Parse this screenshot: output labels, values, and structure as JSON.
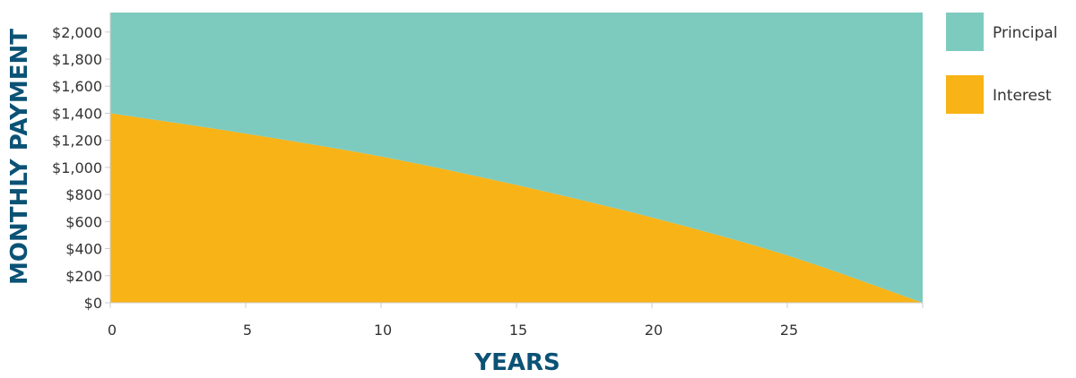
{
  "chart_data": {
    "type": "area",
    "stacked": true,
    "title": "",
    "xlabel": "YEARS",
    "ylabel": "MONTHLY PAYMENT",
    "xlim": [
      0,
      30
    ],
    "ylim": [
      0,
      2144
    ],
    "x_ticks": [
      0,
      5,
      10,
      15,
      20,
      25
    ],
    "y_ticks": [
      0,
      200,
      400,
      600,
      800,
      1000,
      1200,
      1400,
      1600,
      1800,
      2000
    ],
    "x_tick_labels": [
      "0",
      "5",
      "10",
      "15",
      "20",
      "25"
    ],
    "y_tick_labels": [
      "$0",
      "$200",
      "$400",
      "$600",
      "$800",
      "$1,000",
      "$1,200",
      "$1,400",
      "$1,600",
      "$1,800",
      "$2,000"
    ],
    "x": [
      0,
      5,
      10,
      15,
      20,
      25,
      30
    ],
    "series": [
      {
        "name": "Interest",
        "color": "#f8b317",
        "values": [
          1400,
          1250,
          1080,
          870,
          630,
          350,
          0
        ]
      },
      {
        "name": "Principal",
        "color": "#7dcbbf",
        "values": [
          744,
          894,
          1064,
          1274,
          1514,
          1794,
          2144
        ]
      }
    ],
    "legend": {
      "position": "right",
      "entries": [
        "Principal",
        "Interest"
      ]
    },
    "grid": false
  }
}
